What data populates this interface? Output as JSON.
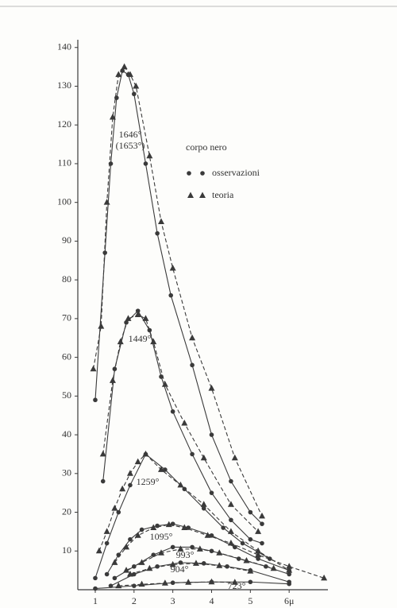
{
  "chart_data": {
    "type": "line",
    "xlim": [
      0.55,
      7.0
    ],
    "ylim": [
      0,
      142
    ],
    "xticks": [
      1,
      2,
      3,
      4,
      5,
      {
        "value": 6,
        "label": "6μ"
      }
    ],
    "yticks": [
      10,
      20,
      30,
      40,
      50,
      60,
      70,
      80,
      90,
      100,
      110,
      120,
      130,
      140
    ],
    "color": "#3a3a3a",
    "legend": {
      "title": "corpo nero",
      "observed": "osservazioni",
      "theory": "teoria"
    },
    "curves": [
      {
        "label": "1646°",
        "theory_label": "(1653°)",
        "observed": {
          "x": [
            1.0,
            1.25,
            1.4,
            1.55,
            1.7,
            1.85,
            2.0,
            2.3,
            2.6,
            2.95,
            3.5,
            4.0,
            4.5,
            5.0,
            5.3
          ],
          "y": [
            49,
            87,
            110,
            127,
            134,
            133,
            128,
            110,
            92,
            76,
            58,
            40,
            28,
            20,
            17
          ]
        },
        "theory": {
          "x": [
            0.95,
            1.15,
            1.3,
            1.45,
            1.6,
            1.75,
            1.9,
            2.05,
            2.4,
            2.7,
            3.0,
            3.5,
            4.0,
            4.6,
            5.3
          ],
          "y": [
            57,
            68,
            100,
            122,
            133,
            135,
            133,
            130,
            112,
            95,
            83,
            65,
            52,
            34,
            19
          ]
        }
      },
      {
        "label": "1449°",
        "observed": {
          "x": [
            1.2,
            1.5,
            1.8,
            2.1,
            2.4,
            2.7,
            3.0,
            3.5,
            4.0,
            4.5,
            5.0,
            5.3
          ],
          "y": [
            28,
            57,
            69,
            72,
            67,
            55,
            46,
            35,
            25,
            18,
            13,
            12
          ]
        },
        "theory": {
          "x": [
            1.2,
            1.45,
            1.65,
            1.85,
            2.1,
            2.3,
            2.5,
            2.8,
            3.3,
            3.8,
            4.5,
            5.2
          ],
          "y": [
            35,
            54,
            64,
            70,
            71,
            70,
            64,
            53,
            43,
            34,
            22,
            15
          ]
        }
      },
      {
        "label": "1259°",
        "observed": {
          "x": [
            1.0,
            1.3,
            1.6,
            1.9,
            2.3,
            2.8,
            3.3,
            3.8,
            4.3,
            4.8,
            5.5
          ],
          "y": [
            3,
            12,
            20,
            27,
            35,
            31,
            26,
            21,
            16,
            12,
            8
          ]
        },
        "theory": {
          "x": [
            1.1,
            1.3,
            1.5,
            1.7,
            1.9,
            2.1,
            2.3,
            2.7,
            3.2,
            3.8,
            4.5,
            5.2,
            6.0
          ],
          "y": [
            10,
            15,
            21,
            26,
            30,
            33,
            35,
            31,
            27,
            22,
            15,
            10,
            5
          ]
        }
      },
      {
        "label": "1095°",
        "observed": {
          "x": [
            1.3,
            1.6,
            1.9,
            2.2,
            2.6,
            3.0,
            3.4,
            4.0,
            4.6,
            5.2,
            6.0
          ],
          "y": [
            4,
            9,
            13,
            15.5,
            16.5,
            17,
            16,
            14,
            11,
            8,
            5
          ]
        },
        "theory": {
          "x": [
            1.5,
            1.8,
            2.1,
            2.5,
            2.9,
            3.3,
            3.9,
            4.5,
            5.2,
            6.0,
            6.9
          ],
          "y": [
            7,
            11,
            14,
            16,
            16.8,
            16,
            14,
            12,
            9,
            6,
            3
          ]
        }
      },
      {
        "label": "993°",
        "observed": {
          "x": [
            1.5,
            2.0,
            2.5,
            3.0,
            3.5,
            4.0,
            4.7,
            5.4,
            6.0
          ],
          "y": [
            3,
            6,
            9,
            11,
            11,
            10,
            8,
            6,
            4
          ]
        },
        "theory": {
          "x": [
            1.8,
            2.2,
            2.7,
            3.2,
            3.7,
            4.2,
            4.9,
            5.6
          ],
          "y": [
            5,
            7,
            9.5,
            10.5,
            10.5,
            9.5,
            7.5,
            5.5
          ]
        }
      },
      {
        "label": "904°",
        "observed": {
          "x": [
            1.4,
            2.0,
            2.6,
            3.2,
            3.8,
            4.4,
            5.0,
            6.0
          ],
          "y": [
            1,
            4,
            6,
            7,
            6.8,
            6,
            5,
            2
          ]
        },
        "theory": {
          "x": [
            1.9,
            2.4,
            3.0,
            3.6,
            4.2,
            5.0
          ],
          "y": [
            4,
            5.5,
            6.5,
            6.8,
            6.2,
            4.8
          ]
        }
      },
      {
        "label": "723°",
        "observed": {
          "x": [
            1.0,
            2.0,
            3.0,
            4.0,
            5.0,
            6.0
          ],
          "y": [
            0.3,
            1,
            1.8,
            2,
            2,
            1.5
          ]
        },
        "theory": {
          "x": [
            1.6,
            2.2,
            2.8,
            3.4,
            4.0,
            4.6
          ],
          "y": [
            1,
            1.4,
            1.7,
            1.9,
            2,
            1.9
          ]
        }
      }
    ]
  }
}
